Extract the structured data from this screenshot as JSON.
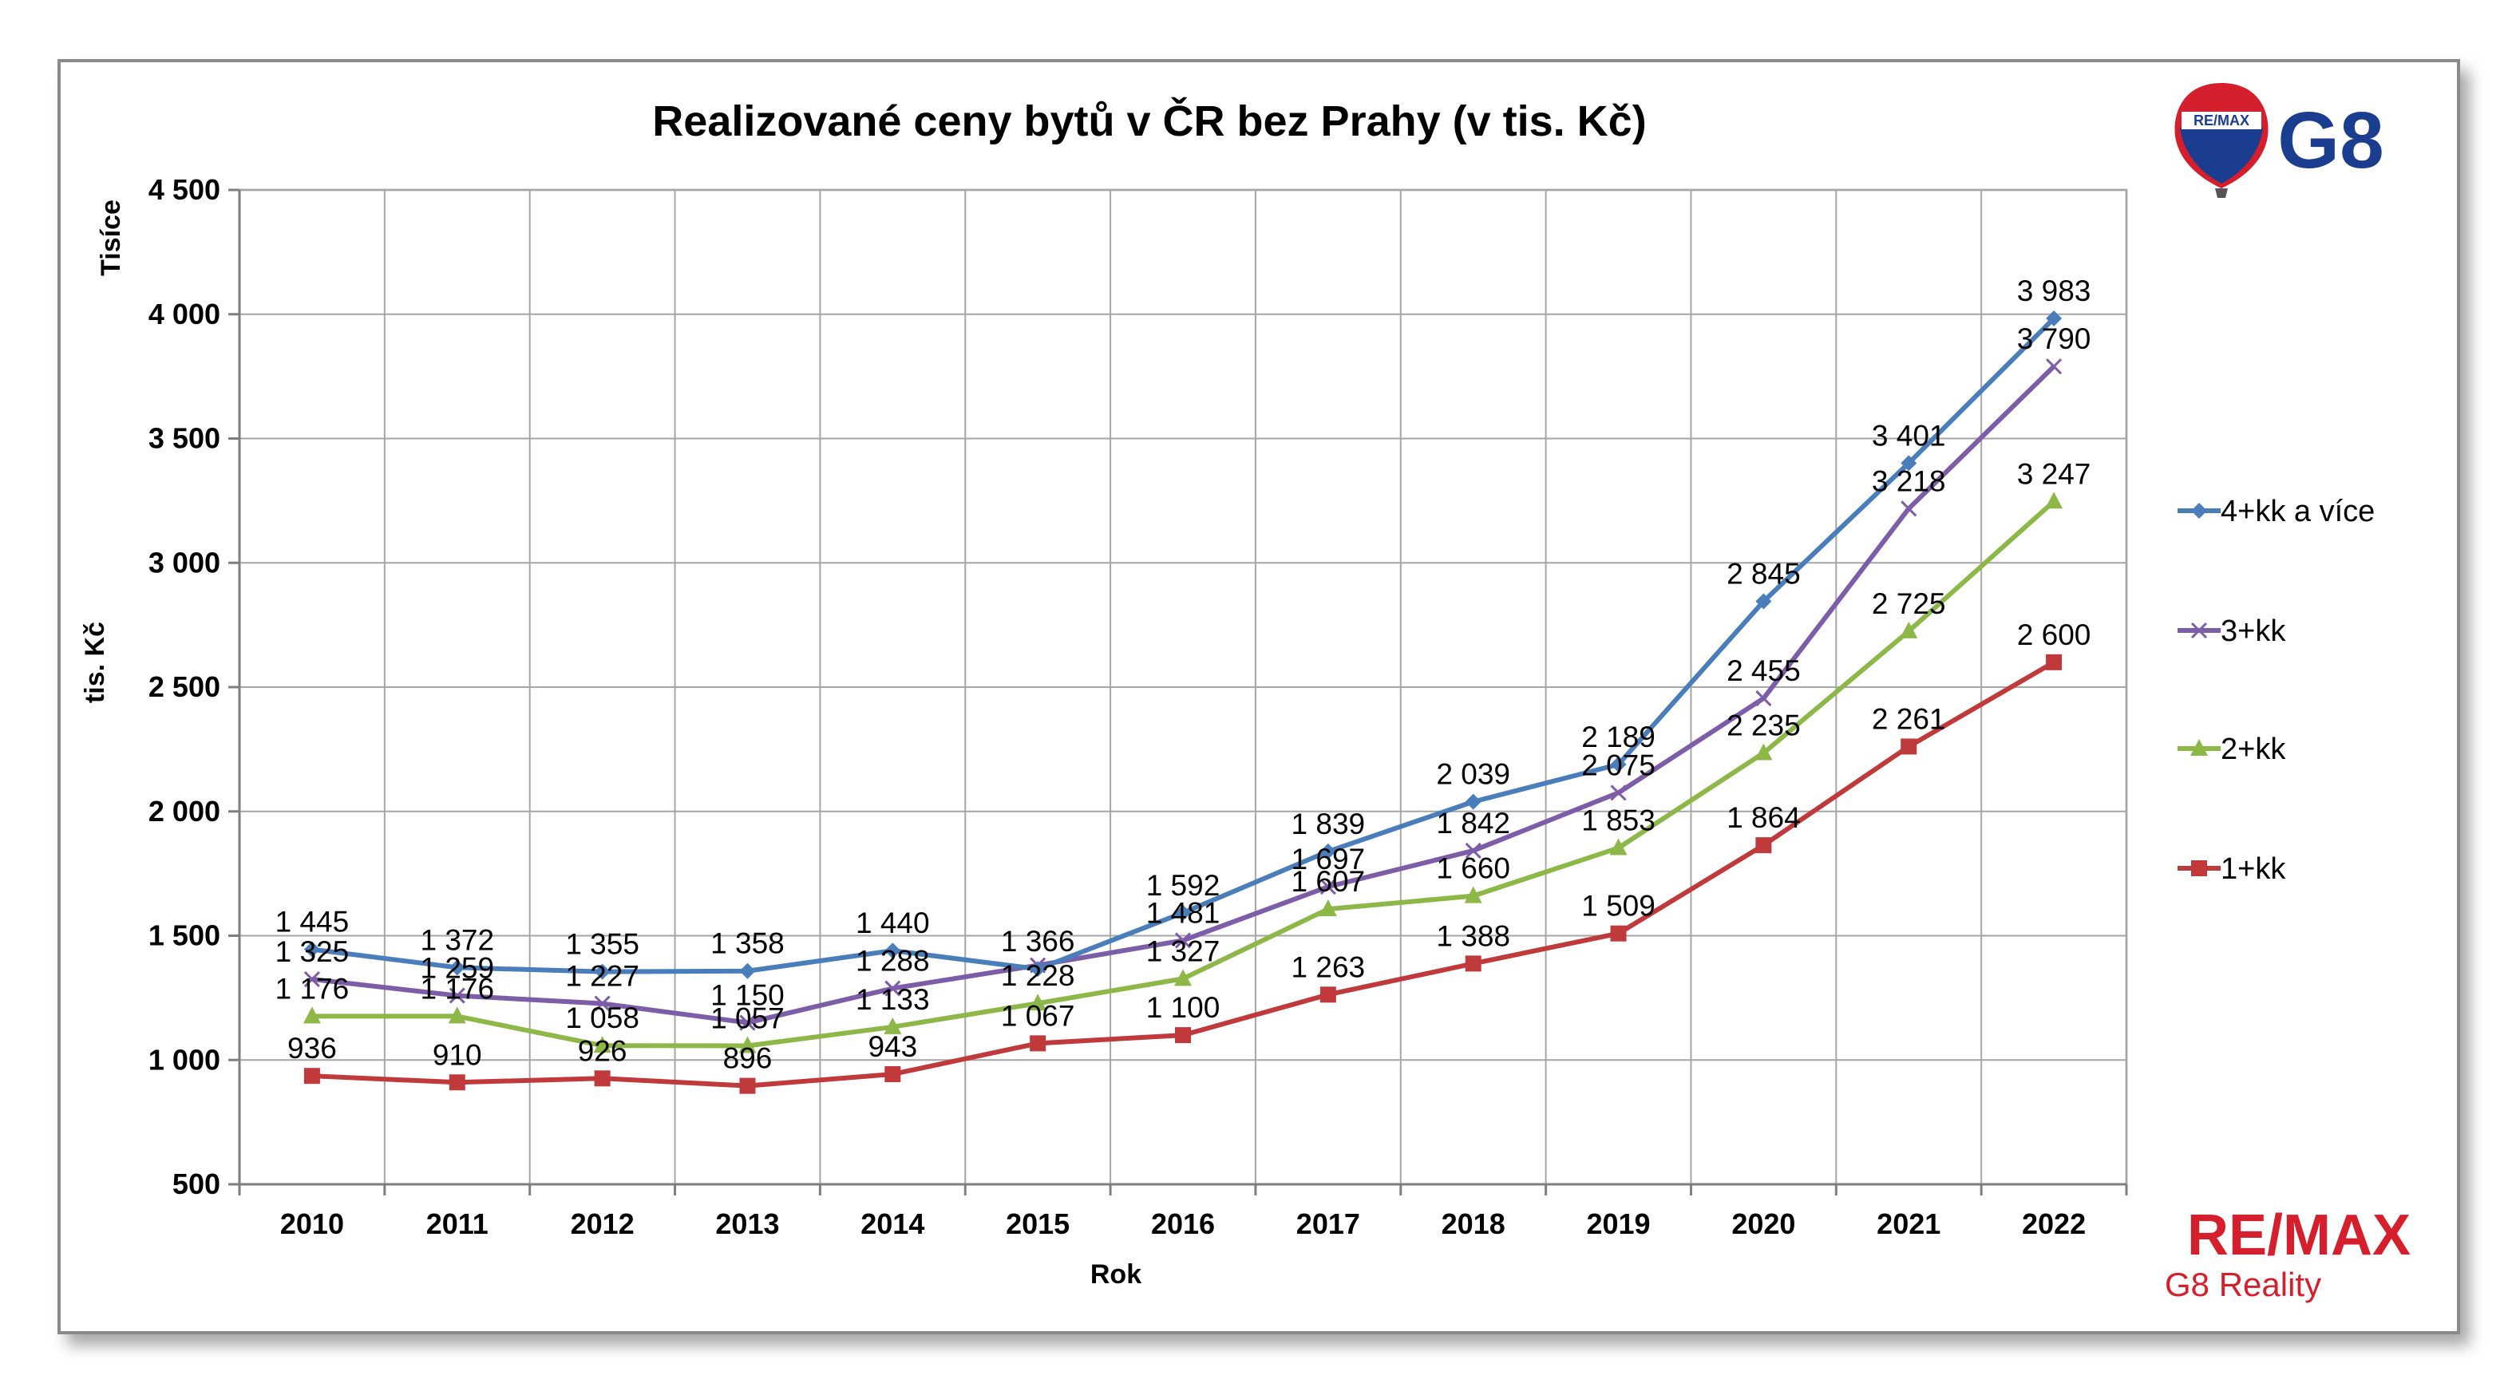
{
  "chart_data": {
    "type": "line",
    "title": "Realizované ceny bytů v ČR bez Prahy (v tis. Kč)",
    "xlabel": "Rok",
    "ylabel": "tis. Kč",
    "y_unit_label": "Tisíce",
    "ylim": [
      500,
      4500
    ],
    "yticks": [
      500,
      1000,
      1500,
      2000,
      2500,
      3000,
      3500,
      4000,
      4500
    ],
    "ytick_labels": [
      "500",
      "1 000",
      "1 500",
      "2 000",
      "2 500",
      "3 000",
      "3 500",
      "4 000",
      "4 500"
    ],
    "grid": true,
    "legend_position": "right",
    "categories": [
      "2010",
      "2011",
      "2012",
      "2013",
      "2014",
      "2015",
      "2016",
      "2017",
      "2018",
      "2019",
      "2020",
      "2021",
      "2022"
    ],
    "series": [
      {
        "name": "4+kk a více",
        "color": "#4a7ebb",
        "marker": "diamond",
        "values": [
          1445,
          1372,
          1355,
          1358,
          1440,
          1366,
          1592,
          1839,
          2039,
          2189,
          2845,
          3401,
          3983
        ],
        "labels": [
          "1 445",
          "1 372",
          "1 355",
          "1 358",
          "1 440",
          "1 366",
          "1 592",
          "1 839",
          "2 039",
          "2 189",
          "2 845",
          "3 401",
          "3 983"
        ]
      },
      {
        "name": "3+kk",
        "color": "#7d5ca8",
        "marker": "x",
        "values": [
          1325,
          1259,
          1227,
          1150,
          1288,
          1381,
          1481,
          1697,
          1842,
          2075,
          2455,
          3218,
          3790
        ],
        "labels": [
          "1 325",
          "1 259",
          "1 227",
          "1 150",
          "1 288",
          "",
          "1 481",
          "1 697",
          "1 842",
          "2 075",
          "2 455",
          "3 218",
          "3 790"
        ]
      },
      {
        "name": "2+kk",
        "color": "#8db848",
        "marker": "triangle",
        "values": [
          1176,
          1176,
          1058,
          1057,
          1133,
          1228,
          1327,
          1607,
          1660,
          1853,
          2235,
          2725,
          3247
        ],
        "labels": [
          "1 176",
          "1 176",
          "1 058",
          "1 057",
          "1 133",
          "1 228",
          "1 327",
          "1 607",
          "1 660",
          "1 853",
          "2 235",
          "2 725",
          "3 247"
        ]
      },
      {
        "name": "1+kk",
        "color": "#c0393b",
        "marker": "square",
        "values": [
          936,
          910,
          926,
          896,
          943,
          1067,
          1100,
          1263,
          1388,
          1509,
          1864,
          2261,
          2600
        ],
        "labels": [
          "936",
          "910",
          "926",
          "896",
          "943",
          "1 067",
          "1 100",
          "1 263",
          "1 388",
          "1 509",
          "1 864",
          "2 261",
          "2 600"
        ]
      }
    ]
  },
  "logo_top": {
    "badge_text": "RE/MAX",
    "brand_text": "G8",
    "brand_color": "#1a3d8f"
  },
  "logo_bottom": {
    "line1_text": "RE/MAX",
    "line1_color": "#d61f2c",
    "line2_text": "G8 Reality",
    "line2_color": "#d61f2c"
  }
}
